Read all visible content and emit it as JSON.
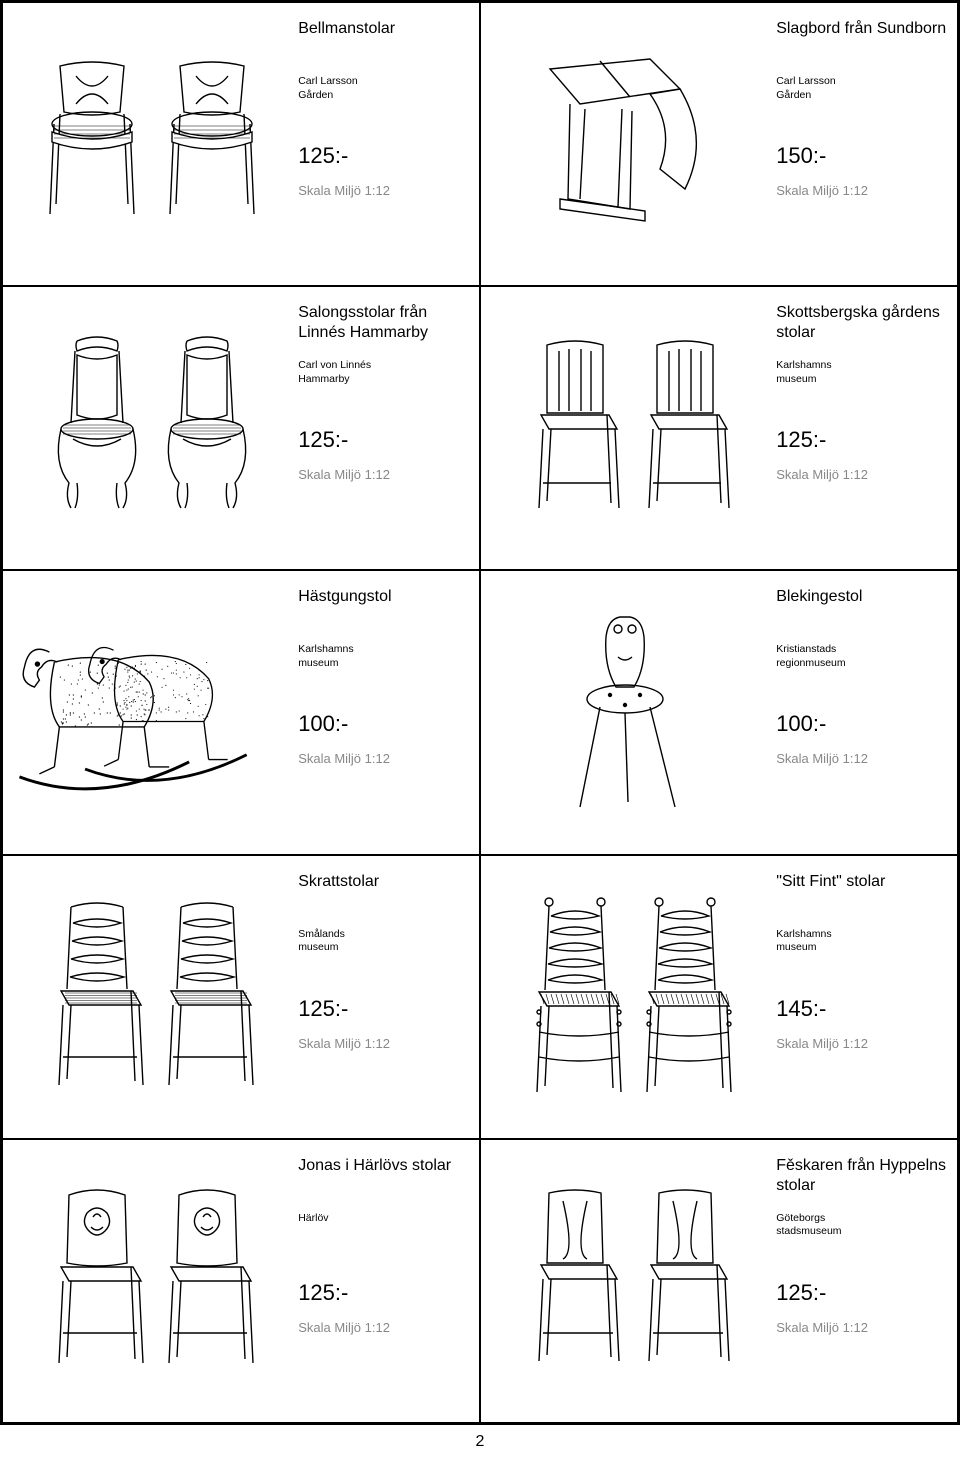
{
  "page_number": "2",
  "scale_label": "Skala Miljö 1:12",
  "colors": {
    "text": "#000000",
    "scale": "#888888",
    "stroke": "#000000",
    "bg": "#ffffff"
  },
  "items": [
    {
      "title": "Bellmanstolar",
      "source": "Carl Larsson\nGården",
      "price": "125:-",
      "image": "pair_x_back"
    },
    {
      "title": "Slagbord från Sundborn",
      "source": "Carl Larsson\nGården",
      "price": "150:-",
      "image": "drop_table"
    },
    {
      "title": "Salongsstolar från Linnés Hammarby",
      "source": "Carl von Linnés\nHammarby",
      "price": "125:-",
      "image": "pair_baroque"
    },
    {
      "title": "Skottsbergska gårdens stolar",
      "source": "Karlshamns\nmuseum",
      "price": "125:-",
      "image": "pair_slat"
    },
    {
      "title": "Hästgungstol",
      "source": "Karlshamns\nmuseum",
      "price": "100:-",
      "image": "rocking_horse"
    },
    {
      "title": "Blekingestol",
      "source": "Kristianstads\nregionmuseum",
      "price": "100:-",
      "image": "three_leg"
    },
    {
      "title": "Skrattstolar",
      "source": "Smålands\nmuseum",
      "price": "125:-",
      "image": "pair_ladder"
    },
    {
      "title": "\"Sitt Fint\" stolar",
      "source": "Karlshamns\nmuseum",
      "price": "145:-",
      "image": "pair_finial"
    },
    {
      "title": "Jonas i Härlövs stolar",
      "source": "Härlöv",
      "price": "125:-",
      "image": "pair_carved"
    },
    {
      "title": "Fěskaren från Hyppelns stolar",
      "source": "Göteborgs\nstadsmuseum",
      "price": "125:-",
      "image": "pair_plain"
    }
  ]
}
